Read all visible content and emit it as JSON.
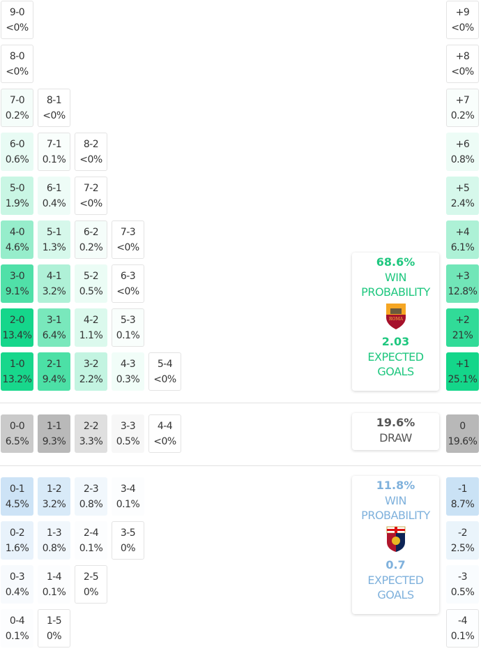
{
  "colors": {
    "home": "#1fc77f",
    "away": "#7fb1dc",
    "draw": "#555555",
    "home_cell": "#14d68a",
    "away_cell": "#c9e1f5",
    "draw_cell": "#b8b8b8"
  },
  "home_rows": [
    [
      {
        "score": "9-0",
        "pct": "<0%"
      }
    ],
    [
      {
        "score": "8-0",
        "pct": "<0%"
      }
    ],
    [
      {
        "score": "7-0",
        "pct": "0.2%"
      },
      {
        "score": "8-1",
        "pct": "<0%"
      }
    ],
    [
      {
        "score": "6-0",
        "pct": "0.6%"
      },
      {
        "score": "7-1",
        "pct": "0.1%"
      },
      {
        "score": "8-2",
        "pct": "<0%"
      }
    ],
    [
      {
        "score": "5-0",
        "pct": "1.9%"
      },
      {
        "score": "6-1",
        "pct": "0.4%"
      },
      {
        "score": "7-2",
        "pct": "<0%"
      }
    ],
    [
      {
        "score": "4-0",
        "pct": "4.6%"
      },
      {
        "score": "5-1",
        "pct": "1.3%"
      },
      {
        "score": "6-2",
        "pct": "0.2%"
      },
      {
        "score": "7-3",
        "pct": "<0%"
      }
    ],
    [
      {
        "score": "3-0",
        "pct": "9.1%"
      },
      {
        "score": "4-1",
        "pct": "3.2%"
      },
      {
        "score": "5-2",
        "pct": "0.5%"
      },
      {
        "score": "6-3",
        "pct": "<0%"
      }
    ],
    [
      {
        "score": "2-0",
        "pct": "13.4%"
      },
      {
        "score": "3-1",
        "pct": "6.4%"
      },
      {
        "score": "4-2",
        "pct": "1.1%"
      },
      {
        "score": "5-3",
        "pct": "0.1%"
      }
    ],
    [
      {
        "score": "1-0",
        "pct": "13.2%"
      },
      {
        "score": "2-1",
        "pct": "9.4%"
      },
      {
        "score": "3-2",
        "pct": "2.2%"
      },
      {
        "score": "4-3",
        "pct": "0.3%"
      },
      {
        "score": "5-4",
        "pct": "<0%"
      }
    ]
  ],
  "draw_row": [
    {
      "score": "0-0",
      "pct": "6.5%"
    },
    {
      "score": "1-1",
      "pct": "9.3%"
    },
    {
      "score": "2-2",
      "pct": "3.3%"
    },
    {
      "score": "3-3",
      "pct": "0.5%"
    },
    {
      "score": "4-4",
      "pct": "<0%"
    }
  ],
  "away_rows": [
    [
      {
        "score": "0-1",
        "pct": "4.5%"
      },
      {
        "score": "1-2",
        "pct": "3.2%"
      },
      {
        "score": "2-3",
        "pct": "0.8%"
      },
      {
        "score": "3-4",
        "pct": "0.1%"
      }
    ],
    [
      {
        "score": "0-2",
        "pct": "1.6%"
      },
      {
        "score": "1-3",
        "pct": "0.8%"
      },
      {
        "score": "2-4",
        "pct": "0.1%"
      },
      {
        "score": "3-5",
        "pct": "0%"
      }
    ],
    [
      {
        "score": "0-3",
        "pct": "0.4%"
      },
      {
        "score": "1-4",
        "pct": "0.1%"
      },
      {
        "score": "2-5",
        "pct": "0%"
      }
    ],
    [
      {
        "score": "0-4",
        "pct": "0.1%"
      },
      {
        "score": "1-5",
        "pct": "0%"
      }
    ]
  ],
  "margin_home": [
    {
      "score": "+9",
      "pct": "<0%"
    },
    {
      "score": "+8",
      "pct": "<0%"
    },
    {
      "score": "+7",
      "pct": "0.2%"
    },
    {
      "score": "+6",
      "pct": "0.8%"
    },
    {
      "score": "+5",
      "pct": "2.4%"
    },
    {
      "score": "+4",
      "pct": "6.1%"
    },
    {
      "score": "+3",
      "pct": "12.8%"
    },
    {
      "score": "+2",
      "pct": "21%"
    },
    {
      "score": "+1",
      "pct": "25.1%"
    }
  ],
  "margin_draw": {
    "score": "0",
    "pct": "19.6%"
  },
  "margin_away": [
    {
      "score": "-1",
      "pct": "8.7%"
    },
    {
      "score": "-2",
      "pct": "2.5%"
    },
    {
      "score": "-3",
      "pct": "0.5%"
    },
    {
      "score": "-4",
      "pct": "0.1%"
    }
  ],
  "home_card": {
    "win_pct": "68.6%",
    "win_label_1": "WIN",
    "win_label_2": "PROBABILITY",
    "team_logo": "roma-crest-icon",
    "logo_text": "ROMA",
    "xg": "2.03",
    "xg_label_1": "EXPECTED",
    "xg_label_2": "GOALS"
  },
  "draw_card": {
    "pct": "19.6%",
    "label": "DRAW"
  },
  "away_card": {
    "win_pct": "11.8%",
    "win_label_1": "WIN",
    "win_label_2": "PROBABILITY",
    "team_logo": "genoa-crest-icon",
    "xg": "0.7",
    "xg_label_1": "EXPECTED",
    "xg_label_2": "GOALS"
  }
}
